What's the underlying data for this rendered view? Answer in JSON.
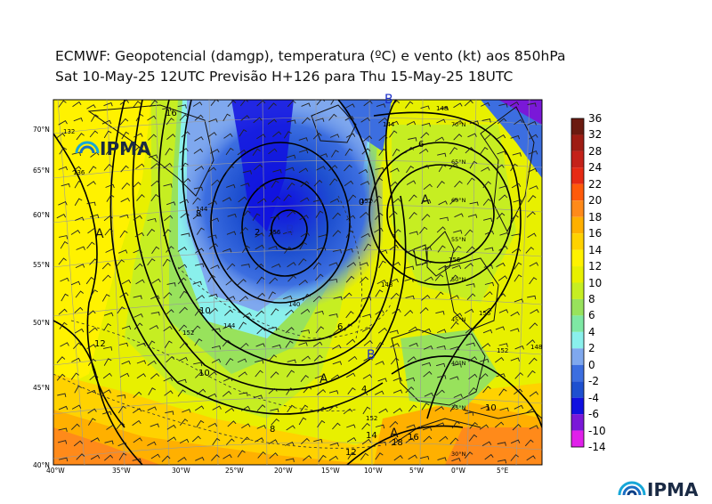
{
  "title": {
    "line1": "ECMWF:  Geopotencial (damgp), temperatura (ºC) e vento (kt) aos 850hPa",
    "line2": "Sat 10-May-25 12UTC Previsão H+126 para Thu 15-May-25 18UTC"
  },
  "brand": {
    "name": "IPMA"
  },
  "colorbar": {
    "labels": [
      "36",
      "32",
      "28",
      "24",
      "22",
      "20",
      "18",
      "16",
      "14",
      "12",
      "10",
      "8",
      "6",
      "4",
      "2",
      "0",
      "-2",
      "-4",
      "-6",
      "-10",
      "-14"
    ],
    "colors": [
      "#6b1a10",
      "#9e1c13",
      "#c4221a",
      "#e62a14",
      "#ff5a0a",
      "#ff8a1a",
      "#ffb000",
      "#ffd200",
      "#fff200",
      "#e8f000",
      "#c6ee22",
      "#98e25c",
      "#7ee8a4",
      "#8af0ec",
      "#7fa8ee",
      "#3c6ee0",
      "#1e50d0",
      "#1010e0",
      "#7a18d8",
      "#e020ea"
    ]
  },
  "map": {
    "lon_labels": [
      "40°W",
      "35°W",
      "30°W",
      "25°W",
      "20°W",
      "15°W",
      "10°W",
      "5°W",
      "0°W",
      "5°E"
    ],
    "lat_labels": [
      "70°N",
      "65°N",
      "60°N",
      "55°N",
      "50°N",
      "45°N",
      "40°N"
    ],
    "inner_lat_labels": [
      "70°N",
      "65°N",
      "60°N",
      "55°N",
      "50°N",
      "45°N",
      "40°N",
      "35°N",
      "30°N"
    ],
    "pressure_centers": [
      {
        "label": "A",
        "kind": "high"
      },
      {
        "label": "A",
        "kind": "high"
      },
      {
        "label": "A",
        "kind": "high"
      },
      {
        "label": "A",
        "kind": "high"
      },
      {
        "label": "B",
        "kind": "low"
      },
      {
        "label": "B",
        "kind": "low"
      },
      {
        "label": "B",
        "kind": "low"
      }
    ],
    "contour_labels": [
      "132",
      "136",
      "140",
      "144",
      "148",
      "152",
      "156",
      "152",
      "144",
      "148",
      "156",
      "152",
      "148",
      "144",
      "152",
      "156"
    ],
    "temp_labels": [
      "12",
      "10",
      "8",
      "6",
      "4",
      "10",
      "12",
      "14",
      "16",
      "16",
      "18",
      "6",
      "8",
      "10",
      "2",
      "0"
    ]
  }
}
